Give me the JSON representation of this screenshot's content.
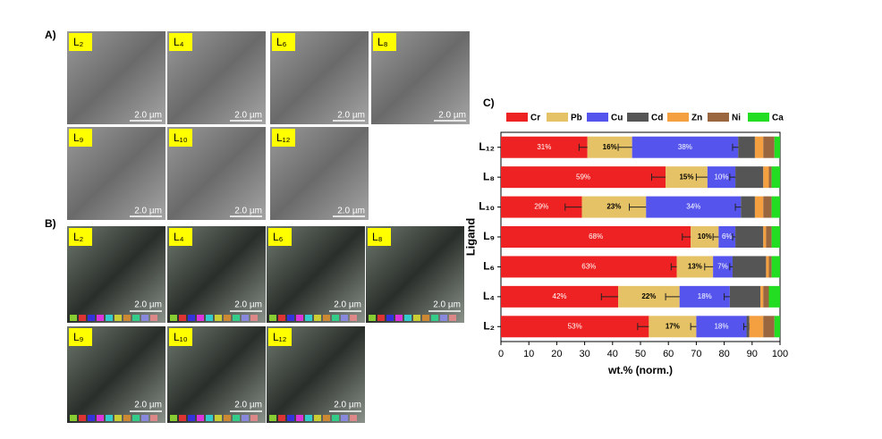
{
  "panel_a": {
    "label": "A)",
    "images": [
      {
        "label": "L₂",
        "scale": "2.0 µm"
      },
      {
        "label": "L₄",
        "scale": "2.0 µm"
      },
      {
        "label": "L₆",
        "scale": "2.0 µm"
      },
      {
        "label": "L₈",
        "scale": "2.0 µm"
      },
      {
        "label": "L₉",
        "scale": "2.0 µm"
      },
      {
        "label": "L₁₀",
        "scale": "2.0 µm"
      },
      {
        "label": "L₁₂",
        "scale": "2.0 µm"
      }
    ]
  },
  "panel_b": {
    "label": "B)",
    "images": [
      {
        "label": "L₂",
        "scale": "2.0 µm"
      },
      {
        "label": "L₄",
        "scale": "2.0 µm"
      },
      {
        "label": "L₆",
        "scale": "2.0 µm"
      },
      {
        "label": "L₈",
        "scale": "2.0 µm"
      },
      {
        "label": "L₉",
        "scale": "2.0 µm"
      },
      {
        "label": "L₁₀",
        "scale": "2.0 µm"
      },
      {
        "label": "L₁₂",
        "scale": "2.0 µm"
      }
    ]
  },
  "chart_data": {
    "type": "stacked_barh",
    "panel_label": "C)",
    "xlabel": "wt.% (norm.)",
    "ylabel": "Ligand",
    "categories": [
      "L₁₂",
      "L₈",
      "L₁₀",
      "L₉",
      "L₆",
      "L₄",
      "L₂"
    ],
    "xlim": [
      0,
      100
    ],
    "xticks": [
      0,
      10,
      20,
      30,
      40,
      50,
      60,
      70,
      80,
      90,
      100
    ],
    "series": [
      {
        "name": "Cr",
        "color": "#ee2222",
        "values": [
          31,
          59,
          29,
          68,
          63,
          42,
          53
        ],
        "value_labels": [
          "31%",
          "59%",
          "29%",
          "68%",
          "63%",
          "42%",
          "53%"
        ],
        "errors": [
          3,
          5,
          6,
          3,
          2,
          6,
          4
        ]
      },
      {
        "name": "Pb",
        "color": "#e6c266",
        "values": [
          16,
          15,
          23,
          10,
          13,
          22,
          17
        ],
        "value_labels": [
          "16%",
          "15%",
          "23%",
          "10%",
          "13%",
          "22%",
          "17%"
        ],
        "errors": [
          5,
          4,
          6,
          2,
          3,
          5,
          2
        ]
      },
      {
        "name": "Cu",
        "color": "#5555ee",
        "values": [
          38,
          10,
          34,
          6,
          7,
          18,
          18
        ],
        "value_labels": [
          "38%",
          "10%",
          "34%",
          "6%",
          "7%",
          "18%",
          "18%"
        ],
        "errors": [
          2,
          2,
          2,
          1,
          1,
          2,
          1
        ]
      },
      {
        "name": "Cd",
        "color": "#555555",
        "values": [
          6,
          10,
          5,
          10,
          12,
          11,
          1
        ]
      },
      {
        "name": "Zn",
        "color": "#f5a040",
        "values": [
          3,
          2,
          3,
          1,
          1,
          1,
          5
        ]
      },
      {
        "name": "Ni",
        "color": "#9a6640",
        "values": [
          4,
          1,
          3,
          2,
          1,
          2,
          4
        ]
      },
      {
        "name": "Ca",
        "color": "#22dd22",
        "values": [
          2,
          3,
          3,
          3,
          3,
          4,
          2
        ]
      }
    ]
  }
}
